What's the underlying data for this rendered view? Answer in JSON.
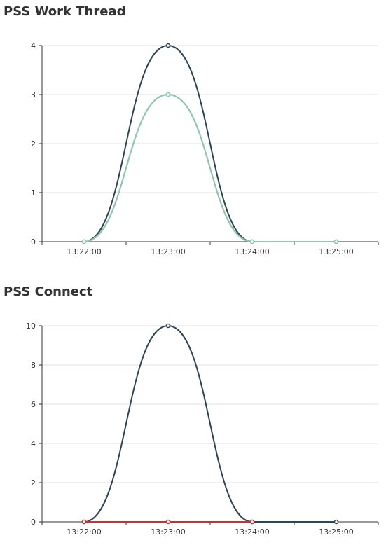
{
  "chart_data": [
    {
      "type": "line",
      "title": "PSS Work Thread",
      "xlabel": "",
      "ylabel": "",
      "categories": [
        "13:22:00",
        "13:23:00",
        "13:24:00",
        "13:25:00"
      ],
      "ylim": [
        0,
        4
      ],
      "yticks": [
        0,
        1,
        2,
        3,
        4
      ],
      "grid": true,
      "smooth": true,
      "series": [
        {
          "color": "#2f4554",
          "values": [
            0,
            4,
            0,
            0
          ]
        },
        {
          "color": "#61a0a8",
          "values": [
            0,
            3,
            0,
            0
          ]
        },
        {
          "color": "#91c7ae",
          "values": [
            0,
            3,
            0,
            0
          ]
        }
      ]
    },
    {
      "type": "line",
      "title": "PSS Connect",
      "xlabel": "",
      "ylabel": "",
      "categories": [
        "13:22:00",
        "13:23:00",
        "13:24:00",
        "13:25:00"
      ],
      "ylim": [
        0,
        10
      ],
      "yticks": [
        0,
        2,
        4,
        6,
        8,
        10
      ],
      "grid": true,
      "smooth": true,
      "series": [
        {
          "color": "#2f4554",
          "values": [
            0,
            10,
            0,
            0
          ]
        },
        {
          "color": "#c23531",
          "values": [
            0,
            0,
            0,
            null
          ]
        }
      ]
    }
  ]
}
